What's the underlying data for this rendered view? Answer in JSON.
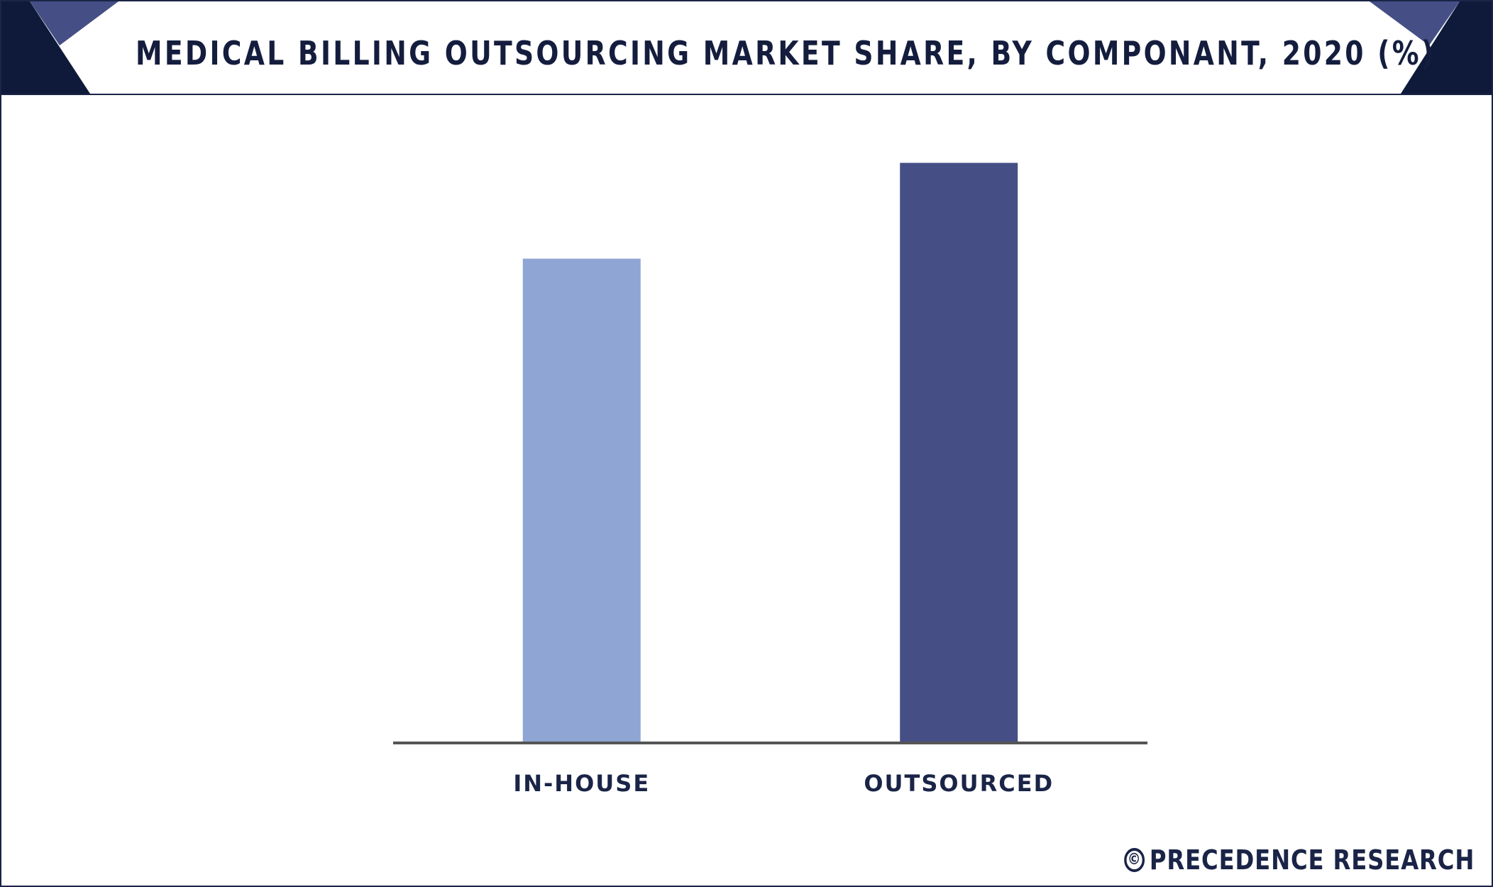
{
  "chart_data": {
    "type": "bar",
    "title": "MEDICAL BILLING OUTSOURCING MARKET SHARE, BY COMPONANT, 2020 (%)",
    "categories": [
      "IN-HOUSE",
      "OUTSOURCED"
    ],
    "values": [
      45.5,
      54.5
    ],
    "colors": [
      "#8fa6d4",
      "#454f86"
    ],
    "ylim": [
      0,
      60
    ],
    "grid": false,
    "legend": "none",
    "xlabel": "",
    "ylabel": ""
  },
  "brand": {
    "symbol": "©",
    "name": "PRECEDENCE RESEARCH"
  },
  "theme": {
    "dark": "#0f1a3a",
    "accent": "#454f86",
    "axis": "#555555"
  }
}
